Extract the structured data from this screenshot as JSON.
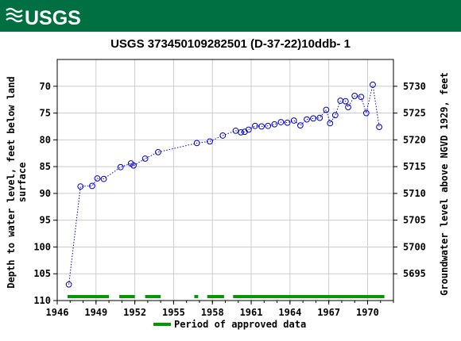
{
  "banner": {
    "logo_text": "USGS",
    "color": "#006f41"
  },
  "chart_data": {
    "type": "scatter",
    "title": "USGS 373450109282501  (D-37-22)10ddb- 1",
    "ylabel_left": [
      "Depth to water level, feet below land",
      "surface"
    ],
    "ylabel_right": "Groundwater level above NGVD 1929, feet",
    "xlim": [
      1946,
      1972
    ],
    "ylim_left": [
      110,
      65
    ],
    "ylim_right": [
      5690,
      5735
    ],
    "x_ticks": [
      1946,
      1949,
      1952,
      1955,
      1958,
      1961,
      1964,
      1967,
      1970
    ],
    "y_ticks_left": [
      70,
      75,
      80,
      85,
      90,
      95,
      100,
      105,
      110
    ],
    "y_ticks_right": [
      5695,
      5700,
      5705,
      5710,
      5715,
      5720,
      5725,
      5730
    ],
    "grid": true,
    "series": [
      {
        "color": "#0000cc",
        "marker": "open-circle",
        "line": "dotted",
        "points": [
          [
            1946.9,
            107.0
          ],
          [
            1947.8,
            88.7
          ],
          [
            1948.7,
            88.6
          ],
          [
            1949.1,
            87.2
          ],
          [
            1949.6,
            87.3
          ],
          [
            1950.9,
            85.1
          ],
          [
            1951.7,
            84.4
          ],
          [
            1951.9,
            84.8
          ],
          [
            1952.8,
            83.5
          ],
          [
            1953.8,
            82.3
          ],
          [
            1956.8,
            80.6
          ],
          [
            1957.8,
            80.3
          ],
          [
            1958.8,
            79.2
          ],
          [
            1959.8,
            78.3
          ],
          [
            1960.2,
            78.6
          ],
          [
            1960.5,
            78.5
          ],
          [
            1960.8,
            78.1
          ],
          [
            1961.3,
            77.4
          ],
          [
            1961.8,
            77.5
          ],
          [
            1962.3,
            77.4
          ],
          [
            1962.8,
            77.1
          ],
          [
            1963.3,
            76.7
          ],
          [
            1963.8,
            76.8
          ],
          [
            1964.3,
            76.4
          ],
          [
            1964.8,
            77.3
          ],
          [
            1965.3,
            76.2
          ],
          [
            1965.8,
            76.0
          ],
          [
            1966.3,
            75.9
          ],
          [
            1966.8,
            74.4
          ],
          [
            1967.1,
            76.9
          ],
          [
            1967.5,
            75.4
          ],
          [
            1967.9,
            72.7
          ],
          [
            1968.3,
            72.8
          ],
          [
            1968.5,
            73.9
          ],
          [
            1969.0,
            71.8
          ],
          [
            1969.5,
            72.0
          ],
          [
            1969.9,
            75.0
          ],
          [
            1970.4,
            69.7
          ],
          [
            1970.9,
            77.6
          ]
        ]
      }
    ],
    "approved_periods": [
      [
        1946.8,
        1950.0
      ],
      [
        1950.8,
        1952.0
      ],
      [
        1952.8,
        1954.0
      ],
      [
        1956.6,
        1956.9
      ],
      [
        1957.6,
        1958.9
      ],
      [
        1959.6,
        1971.3
      ]
    ],
    "approved_color": "#009900",
    "legend": {
      "label": "Period of approved data",
      "placement": "bottom-center"
    }
  }
}
